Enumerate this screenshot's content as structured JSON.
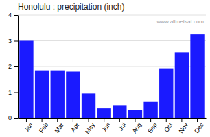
{
  "chart_data": {
    "type": "bar",
    "title": "Honolulu : precipitation (inch)",
    "categories": [
      "Jan",
      "Feb",
      "Mar",
      "Apr",
      "May",
      "Jun",
      "Jul",
      "Aug",
      "Sep",
      "Oct",
      "Nov",
      "Dec"
    ],
    "values": [
      3.0,
      1.85,
      1.85,
      1.8,
      0.95,
      0.37,
      0.47,
      0.32,
      0.62,
      1.93,
      2.55,
      3.25
    ],
    "color": "#1a1aff",
    "ylim": [
      0,
      4
    ],
    "yticks": [
      0,
      1,
      2,
      3,
      4
    ],
    "grid": true,
    "annotations": [
      "www.allmetsat.com"
    ]
  }
}
